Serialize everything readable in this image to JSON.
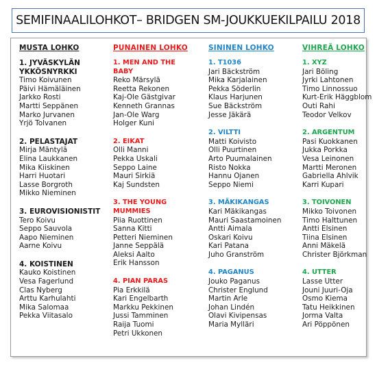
{
  "title": "SEMIFINAALILOHKOT– BRIDGEN SM-JOUKKUEKILPAILU 2018",
  "colors": {
    "black": "#1a1a1a",
    "red": "#e8191a",
    "blue": "#1f84c8",
    "green": "#1aa64a",
    "border": "#4a72b8"
  },
  "columns": [
    {
      "header": "MUSTA LOHKO",
      "color": "#1a1a1a",
      "groups": [
        {
          "name": "1. JYVÄSKYLÄN YKKÖSNYRKKI",
          "players": [
            "Timo Koivunen",
            "Päivi Hämäläinen",
            "Jarkko Rosti",
            "Martti Seppänen",
            "Marko Jurvanen",
            "Yrjö Tolvanen"
          ]
        },
        {
          "name": "2. PELASTAJAT",
          "players": [
            "Mirja Mäntylä",
            "Elina Laukkanen",
            "Mika Kiiskinen",
            "Harri Huotari",
            "Lasse Borgroth",
            "Mikko Nieminen"
          ]
        },
        {
          "name": "3. EUROVISIONISTIT",
          "players": [
            "Tero Koivu",
            "Seppo Sauvola",
            "Aapo Nieminen",
            "Aarne Koivu"
          ]
        },
        {
          "name": "4. KOISTINEN",
          "players": [
            "Kauko Koistinen",
            "Vesa Fagerlund",
            "Clas Nyberg",
            "Arttu Karhulahti",
            "Mika Salomaa",
            "Pekka Viitasalo"
          ]
        }
      ]
    },
    {
      "header": "PUNAINEN LOHKO",
      "color": "#e8191a",
      "groups": [
        {
          "name": "1. MEN AND THE BABY",
          "players": [
            "Reko Märsylä",
            "Reetta Rekonen",
            "Kaj-Ole Gästgivar",
            "Kenneth Grannas",
            "Jan-Ole Warg",
            "Holger Kuni"
          ]
        },
        {
          "name": "2. EIKAT",
          "players": [
            "Olli Manni",
            "Pekka Uskali",
            "Seppo Laine",
            "Mauri Sirkiä",
            "Kaj Sundsten"
          ]
        },
        {
          "name": "3. THE YOUNG MUMMIES",
          "players": [
            "Piia Ruottinen",
            "Sanna Kitti",
            "Petteri Nieminen",
            "Janne Seppälä",
            "Aleksi Aalto",
            "Erik Hansson"
          ]
        },
        {
          "name": "4. PIAN PARAS",
          "players": [
            "Pia Erkkilä",
            "Kari Engelbarth",
            "Markku Pekkinen",
            "Jussi Tamminen",
            "Raija Tuomi",
            "Petri Ukkonen"
          ]
        }
      ]
    },
    {
      "header": "SININEN LOHKO",
      "color": "#1f84c8",
      "groups": [
        {
          "name": "1. T1036",
          "players": [
            "Jari Bäckström",
            "Mika Karjalainen",
            "Pekka Söderlin",
            "Klaus Harjunen",
            "Sue Bäckström",
            "Jesse Jäkärä"
          ]
        },
        {
          "name": "2. VILTTI",
          "players": [
            "Matti Koivisto",
            "Olli Puurtinen",
            "Arto Puumalainen",
            "Risto Nokka",
            "Hannu Ojanen",
            "Seppo Niemi"
          ]
        },
        {
          "name": "3. MÄKIKANGAS",
          "players": [
            "Kari Mäkikangas",
            "Mauri Saastamoinen",
            "Antti Aimala",
            "Oskari Koivu",
            "Kari Patana",
            "Juho Granström"
          ]
        },
        {
          "name": "4. PAGANUS",
          "players": [
            "Jouko Paganus",
            "Christer Englund",
            "Martin Arle",
            "Johan Lindén",
            "Olavi Kivipensas",
            "Maria Mylläri"
          ]
        }
      ]
    },
    {
      "header": "VIHREÄ LOHKO",
      "color": "#1aa64a",
      "groups": [
        {
          "name": "1. XYZ",
          "players": [
            "Jari Böling",
            "Jyrki Lahtonen",
            "Timo Linnossuo",
            "Kurt-Erik Häggblom",
            "Outi Rahi",
            "Teodor Velkov"
          ]
        },
        {
          "name": "2. ARGENTUM",
          "players": [
            "Pasi Kuokkanen",
            "Jukka Porkka",
            "Vesa Leinonen",
            "Martti Meronen",
            "Gabriella Ahlvik",
            "Karri Kupari"
          ]
        },
        {
          "name": "3. TOIVONEN",
          "players": [
            "Mikko Toivonen",
            "Timo Halttunen",
            "Antti Elsinen",
            "Tiina Elsinen",
            "Anni Mäkelä",
            "Christer Björkman"
          ]
        },
        {
          "name": "4. UTTER",
          "players": [
            "Lasse Utter",
            "Jouni Juuri-Oja",
            "Osmo Kiema",
            "Tatu Heikkinen",
            "Jorma Valta",
            "Ari Pöppönen"
          ]
        }
      ]
    }
  ]
}
